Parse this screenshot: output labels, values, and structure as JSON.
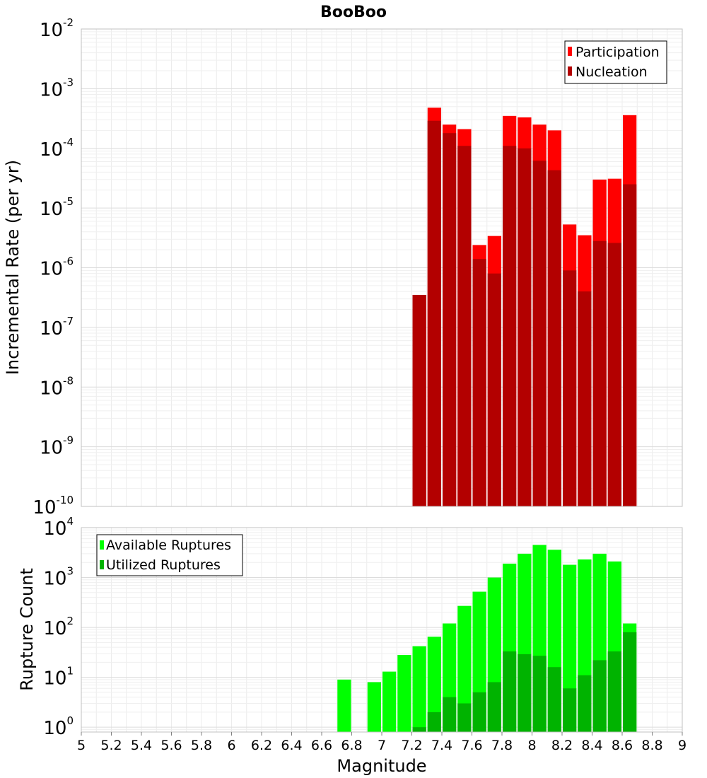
{
  "chart_data": [
    {
      "type": "bar",
      "title": "BooBoo",
      "xlabel": "",
      "ylabel": "Incremental Rate (per yr)",
      "yscale": "log",
      "ylim": [
        1e-10,
        0.01
      ],
      "xlim": [
        5,
        9
      ],
      "grid": true,
      "legend_position": "top-right",
      "bin_width": 0.1,
      "x": [
        7.25,
        7.35,
        7.45,
        7.55,
        7.65,
        7.75,
        7.85,
        7.95,
        8.05,
        8.15,
        8.25,
        8.35,
        8.45,
        8.55,
        8.65
      ],
      "series": [
        {
          "name": "Participation",
          "color": "#ff0000",
          "values": [
            3.5e-07,
            0.00048,
            0.00025,
            0.00021,
            2.4e-06,
            3.4e-06,
            0.00035,
            0.00033,
            0.00025,
            0.0002,
            5.3e-06,
            3.5e-06,
            3e-05,
            3.1e-05,
            0.00036
          ]
        },
        {
          "name": "Nucleation",
          "color": "#b30000",
          "values": [
            3.5e-07,
            0.00029,
            0.00018,
            0.00011,
            1.4e-06,
            8e-07,
            0.00011,
            0.0001,
            6.2e-05,
            4.3e-05,
            9e-07,
            4e-07,
            2.8e-06,
            2.6e-06,
            2.5e-05
          ]
        }
      ]
    },
    {
      "type": "bar",
      "xlabel": "Magnitude",
      "ylabel": "Rupture Count",
      "yscale": "log",
      "ylim": [
        0.8,
        10000
      ],
      "xlim": [
        5,
        9
      ],
      "grid": true,
      "legend_position": "top-left",
      "bin_width": 0.1,
      "x": [
        6.75,
        6.95,
        7.05,
        7.15,
        7.25,
        7.35,
        7.45,
        7.55,
        7.65,
        7.75,
        7.85,
        7.95,
        8.05,
        8.15,
        8.25,
        8.35,
        8.45,
        8.55,
        8.65
      ],
      "series": [
        {
          "name": "Available Ruptures",
          "color": "#00ff00",
          "values": [
            9,
            8,
            13,
            28,
            42,
            65,
            120,
            270,
            520,
            1000,
            1900,
            3000,
            4500,
            3600,
            1800,
            2300,
            3000,
            2100,
            120
          ]
        },
        {
          "name": "Utilized Ruptures",
          "color": "#00b300",
          "values": [
            0,
            0,
            0,
            0,
            1,
            2,
            4,
            3,
            5,
            8,
            33,
            29,
            27,
            16,
            6,
            11,
            22,
            33,
            80
          ]
        }
      ],
      "x_ticks": [
        "5",
        "5.2",
        "5.4",
        "5.6",
        "5.8",
        "6",
        "6.2",
        "6.4",
        "6.6",
        "6.8",
        "7",
        "7.2",
        "7.4",
        "7.6",
        "7.8",
        "8",
        "8.2",
        "8.4",
        "8.6",
        "8.8",
        "9"
      ],
      "top_y_ticks": [
        {
          "base": "10",
          "exp": "-2"
        },
        {
          "base": "10",
          "exp": "-3"
        },
        {
          "base": "10",
          "exp": "-4"
        },
        {
          "base": "10",
          "exp": "-5"
        },
        {
          "base": "10",
          "exp": "-6"
        },
        {
          "base": "10",
          "exp": "-7"
        },
        {
          "base": "10",
          "exp": "-8"
        },
        {
          "base": "10",
          "exp": "-9"
        },
        {
          "base": "10",
          "exp": "-10"
        }
      ],
      "bottom_y_ticks": [
        {
          "base": "10",
          "exp": "4"
        },
        {
          "base": "10",
          "exp": "3"
        },
        {
          "base": "10",
          "exp": "2"
        },
        {
          "base": "10",
          "exp": "1"
        },
        {
          "base": "10",
          "exp": "0"
        }
      ]
    }
  ]
}
